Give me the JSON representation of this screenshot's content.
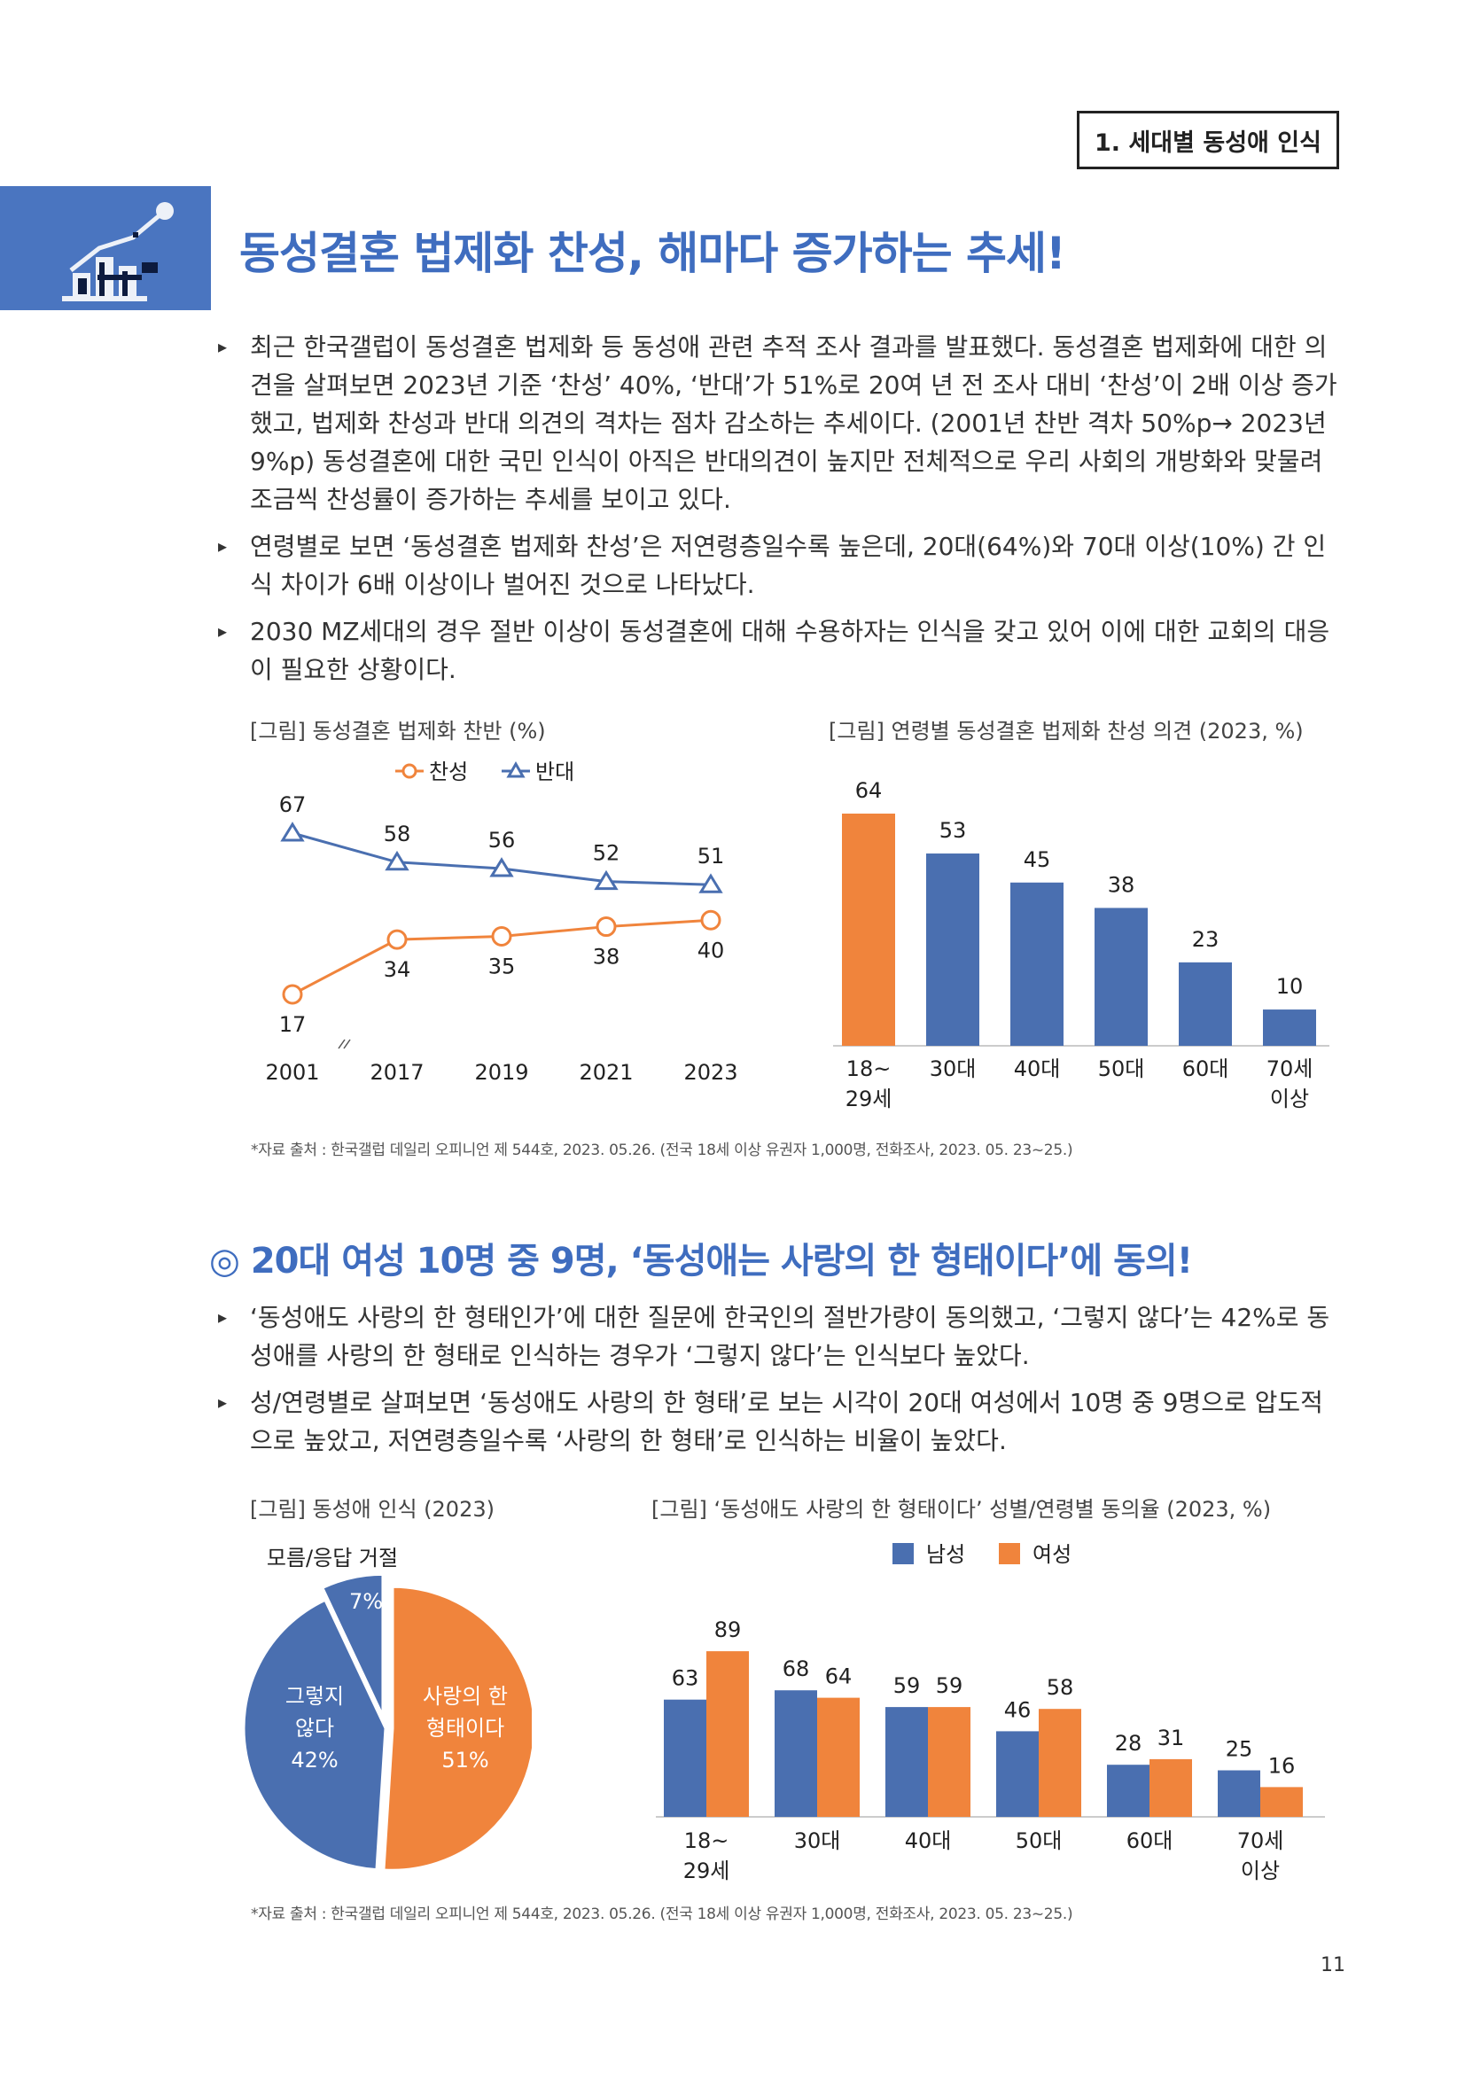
{
  "header": {
    "section_title": "1. 세대별 동성애 인식"
  },
  "banner": {
    "icon": "chart-podium-icon",
    "color": "#4a75c0"
  },
  "section1": {
    "title": "동성결혼 법제화 찬성, 해마다 증가하는 추세!",
    "bullets": [
      "최근 한국갤럽이 동성결혼 법제화 등 동성애 관련 추적 조사 결과를 발표했다. 동성결혼 법제화에 대한 의견을 살펴보면 2023년 기준 ‘찬성’ 40%, ‘반대’가 51%로 20여 년 전 조사 대비 ‘찬성’이 2배 이상 증가했고, 법제화 찬성과 반대 의견의 격차는 점차 감소하는 추세이다. (2001년 찬반 격차 50%p→ 2023년 9%p) 동성결혼에 대한 국민 인식이 아직은 반대의견이 높지만 전체적으로 우리 사회의 개방화와 맞물려 조금씩 찬성률이 증가하는 추세를 보이고 있다.",
      "연령별로 보면 ‘동성결혼 법제화 찬성’은 저연령층일수록 높은데, 20대(64%)와 70대 이상(10%) 간 인식 차이가 6배 이상이나 벌어진 것으로 나타났다.",
      "2030 MZ세대의 경우 절반 이상이 동성결혼에 대해 수용하자는 인식을 갖고 있어 이에 대한 교회의 대응이 필요한 상황이다."
    ],
    "source": "*자료 출처 : 한국갤럽 데일리 오피니언 제 544호, 2023. 05.26. (전국 18세 이상 유권자 1,000명, 전화조사, 2023. 05. 23~25.)"
  },
  "section2": {
    "title": "◎ 20대 여성 10명 중 9명, ‘동성애는 사랑의 한 형태이다’에 동의!",
    "bullets": [
      "‘동성애도 사랑의 한 형태인가’에 대한 질문에 한국인의 절반가량이 동의했고, ‘그렇지 않다’는 42%로 동성애를 사랑의 한 형태로 인식하는 경우가 ‘그렇지 않다’는 인식보다 높았다.",
      "성/연령별로 살펴보면 ‘동성애도 사랑의 한 형태’로 보는 시각이 20대 여성에서 10명 중 9명으로 압도적으로 높았고, 저연령층일수록 ‘사랑의 한 형태’로 인식하는 비율이 높았다."
    ],
    "source": "*자료 출처 : 한국갤럽 데일리 오피니언 제 544호, 2023. 05.26. (전국 18세 이상 유권자 1,000명, 전화조사, 2023. 05. 23~25.)"
  },
  "page_number": "11",
  "chart_data": [
    {
      "type": "line",
      "title": "[그림] 동성결혼 법제화 찬반 (%)",
      "categories": [
        "2001",
        "2017",
        "2019",
        "2021",
        "2023"
      ],
      "series": [
        {
          "name": "찬성",
          "values": [
            17,
            34,
            35,
            38,
            40
          ],
          "color": "#f0843c",
          "marker": "circle"
        },
        {
          "name": "반대",
          "values": [
            67,
            58,
            56,
            52,
            51
          ],
          "color": "#4a6fb0",
          "marker": "triangle"
        }
      ],
      "legend": "top-center",
      "axis_break": "between 2001 and 2017",
      "ylim": [
        0,
        80
      ],
      "grid": false
    },
    {
      "type": "bar",
      "title": "[그림] 연령별 동성결혼 법제화 찬성 의견 (2023, %)",
      "categories": [
        "18~\n29세",
        "30대",
        "40대",
        "50대",
        "60대",
        "70세\n이상"
      ],
      "values": [
        64,
        53,
        45,
        38,
        23,
        10
      ],
      "colors": [
        "#f0843c",
        "#4a6fb0",
        "#4a6fb0",
        "#4a6fb0",
        "#4a6fb0",
        "#4a6fb0"
      ],
      "ylim": [
        0,
        70
      ],
      "grid": false
    },
    {
      "type": "pie",
      "title": "[그림] 동성애 인식 (2023)",
      "slices": [
        {
          "label": "사랑의 한 형태이다",
          "display": "사랑의 한\n형태이다\n51%",
          "value": 51,
          "color": "#f0843c"
        },
        {
          "label": "그렇지 않다",
          "display": "그렇지\n않다\n42%",
          "value": 42,
          "color": "#4a6fb0"
        },
        {
          "label": "모름/응답 거절",
          "display": "7%",
          "value": 7,
          "color": "#4a6fb0"
        }
      ],
      "outside_label": "모름/응답 거절"
    },
    {
      "type": "bar",
      "title": "[그림] ‘동성애도 사랑의 한 형태이다’ 성별/연령별 동의율 (2023, %)",
      "categories": [
        "18~\n29세",
        "30대",
        "40대",
        "50대",
        "60대",
        "70세\n이상"
      ],
      "series": [
        {
          "name": "남성",
          "values": [
            63,
            68,
            59,
            46,
            28,
            25
          ],
          "color": "#4a6fb0"
        },
        {
          "name": "여성",
          "values": [
            89,
            64,
            59,
            58,
            31,
            16
          ],
          "color": "#f0843c"
        }
      ],
      "legend": "top-right",
      "ylim": [
        0,
        100
      ],
      "grid": false
    }
  ]
}
